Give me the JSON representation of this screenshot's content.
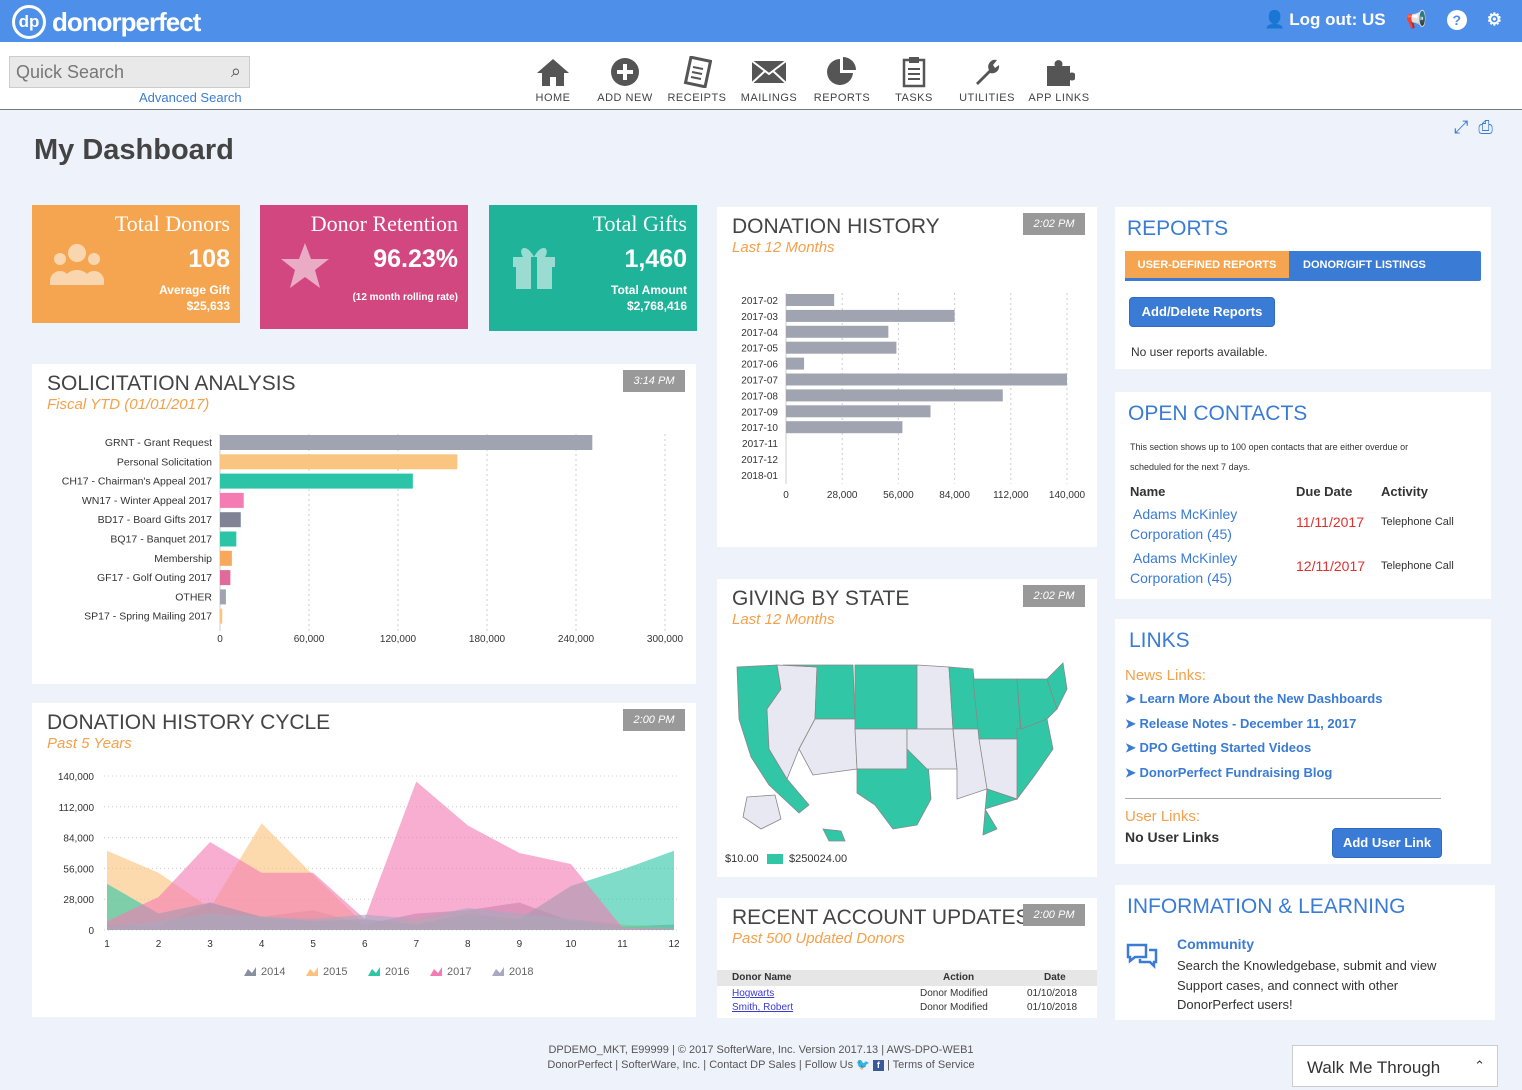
{
  "app": {
    "logo_badge": "dp",
    "logo_name": "donorperfect",
    "logout": "Log out: US"
  },
  "search": {
    "placeholder": "Quick Search",
    "advanced": "Advanced Search"
  },
  "nav": [
    {
      "label": "HOME",
      "icon": "home-icon"
    },
    {
      "label": "ADD NEW",
      "icon": "plus-circle-icon"
    },
    {
      "label": "RECEIPTS",
      "icon": "receipt-icon"
    },
    {
      "label": "MAILINGS",
      "icon": "envelope-icon"
    },
    {
      "label": "REPORTS",
      "icon": "pie-chart-icon"
    },
    {
      "label": "TASKS",
      "icon": "clipboard-icon"
    },
    {
      "label": "UTILITIES",
      "icon": "wrench-icon"
    },
    {
      "label": "APP LINKS",
      "icon": "puzzle-icon"
    }
  ],
  "page_title": "My Dashboard",
  "stats": {
    "donors": {
      "title": "Total Donors",
      "value": "108",
      "sub1": "Average Gift",
      "sub2": "$25,633",
      "color": "#f5a54f"
    },
    "retention": {
      "title": "Donor Retention",
      "value": "96.23%",
      "sub1": "(12 month rolling rate)",
      "color": "#d2477f"
    },
    "gifts": {
      "title": "Total Gifts",
      "value": "1,460",
      "sub1": "Total Amount",
      "sub2": "$2,768,416",
      "color": "#1fb39a"
    }
  },
  "solicitation": {
    "title": "SOLICITATION ANALYSIS",
    "subtitle": "Fiscal YTD (01/01/2017)",
    "time": "3:14 PM"
  },
  "history": {
    "title": "DONATION HISTORY",
    "subtitle": "Last 12 Months",
    "time": "2:02 PM"
  },
  "cycle": {
    "title": "DONATION HISTORY CYCLE",
    "subtitle": "Past 5 Years",
    "time": "2:00 PM"
  },
  "state": {
    "title": "GIVING BY STATE",
    "subtitle": "Last 12 Months",
    "time": "2:02 PM",
    "legend_min": "$10.00",
    "legend_max": "$250024.00"
  },
  "updates": {
    "title": "RECENT ACCOUNT UPDATES",
    "subtitle": "Past 500 Updated Donors",
    "time": "2:00 PM",
    "headers": [
      "Donor Name",
      "Action",
      "Date"
    ],
    "rows": [
      [
        "Hogwarts",
        "Donor Modified",
        "01/10/2018"
      ],
      [
        "Smith, Robert",
        "Donor Modified",
        "01/10/2018"
      ]
    ]
  },
  "reports": {
    "title": "REPORTS",
    "tab1": "USER-DEFINED REPORTS",
    "tab2": "DONOR/GIFT LISTINGS",
    "button": "Add/Delete Reports",
    "empty": "No user reports available."
  },
  "contacts": {
    "title": "OPEN CONTACTS",
    "desc1": "This section shows up to 100 open contacts that are either overdue or",
    "desc2": "scheduled for the next 7 days.",
    "headers": [
      "Name",
      "Due Date",
      "Activity"
    ],
    "rows": [
      {
        "name1": "Adams McKinley",
        "name2": "Corporation (45)",
        "date": "11/11/2017",
        "activity": "Telephone Call"
      },
      {
        "name1": "Adams McKinley",
        "name2": "Corporation (45)",
        "date": "12/11/2017",
        "activity": "Telephone Call"
      }
    ]
  },
  "links": {
    "title": "LINKS",
    "news_label": "News Links:",
    "news": [
      "Learn More About the New Dashboards",
      "Release Notes - December 11, 2017",
      "DPO Getting Started Videos",
      "DonorPerfect Fundraising Blog"
    ],
    "user_label": "User Links:",
    "no_user": "No User Links",
    "button": "Add User Link"
  },
  "info": {
    "title": "INFORMATION & LEARNING",
    "community": "Community",
    "desc1": "Search the Knowledgebase, submit and view",
    "desc2": "Support cases, and connect with other",
    "desc3": "DonorPerfect users!"
  },
  "footer": {
    "line1": "DPDEMO_MKT, E99999 | © 2017 SofterWare, Inc. Version 2017.13 | AWS-DPO-WEB1",
    "line2a": "DonorPerfect | SofterWare, Inc. | Contact DP Sales | Follow Us",
    "line2b": "| Terms of Service"
  },
  "walk": "Walk Me Through",
  "chart_data": [
    {
      "type": "bar",
      "orientation": "horizontal",
      "categories": [
        "GRNT - Grant Request",
        "Personal Solicitation",
        "CH17 - Chairman's Appeal 2017",
        "WN17 - Winter Appeal 2017",
        "BD17 - Board Gifts 2017",
        "BQ17 - Banquet 2017",
        "Membership",
        "GF17 - Golf Outing 2017",
        "OTHER",
        "SP17 - Spring Mailing 2017"
      ],
      "values": [
        251000,
        160000,
        130000,
        16000,
        14000,
        11000,
        8000,
        7000,
        4000,
        1500
      ],
      "colors": [
        "#9fa4b0",
        "#fac580",
        "#2cc4a6",
        "#f47cb3",
        "#7f8394",
        "#2cc4a6",
        "#f8a85a",
        "#e06b9b",
        "#9fa4b0",
        "#fac580"
      ],
      "xticks": [
        0,
        60000,
        120000,
        180000,
        240000,
        300000
      ],
      "xtick_labels": [
        "0",
        "60,000",
        "120,000",
        "180,000",
        "240,000",
        "300,000"
      ],
      "xlim": [
        0,
        300000
      ]
    },
    {
      "type": "bar",
      "orientation": "horizontal",
      "categories": [
        "2017-02",
        "2017-03",
        "2017-04",
        "2017-05",
        "2017-06",
        "2017-07",
        "2017-08",
        "2017-09",
        "2017-10",
        "2017-11",
        "2017-12",
        "2018-01"
      ],
      "values": [
        24000,
        84000,
        51000,
        55000,
        9000,
        140000,
        108000,
        72000,
        58000,
        0,
        0,
        0
      ],
      "color": "#9fa4b0",
      "xticks": [
        0,
        28000,
        56000,
        84000,
        112000,
        140000
      ],
      "xtick_labels": [
        "0",
        "28,000",
        "56,000",
        "84,000",
        "112,000",
        "140,000"
      ],
      "xlim": [
        0,
        140000
      ]
    },
    {
      "type": "area",
      "x": [
        1,
        2,
        3,
        4,
        5,
        6,
        7,
        8,
        9,
        10,
        11,
        12
      ],
      "yticks": [
        0,
        28000,
        56000,
        84000,
        112000,
        140000
      ],
      "ytick_labels": [
        "0",
        "28,000",
        "56,000",
        "84,000",
        "112,000",
        "140,000"
      ],
      "ylim": [
        0,
        140000
      ],
      "series": [
        {
          "name": "2014",
          "color": "#8a8fa0",
          "values": [
            5000,
            3000,
            25000,
            12000,
            18000,
            5000,
            15000,
            18000,
            25000,
            8000,
            3000,
            5000
          ]
        },
        {
          "name": "2015",
          "color": "#fbc27d",
          "values": [
            72000,
            52000,
            20000,
            97000,
            50000,
            5000,
            10000,
            15000,
            12000,
            10000,
            5000,
            2000
          ]
        },
        {
          "name": "2016",
          "color": "#31c7a6",
          "values": [
            42000,
            15000,
            25000,
            12000,
            8000,
            10000,
            5000,
            15000,
            10000,
            40000,
            55000,
            72000
          ]
        },
        {
          "name": "2017",
          "color": "#f47cb3",
          "values": [
            8000,
            30000,
            80000,
            52000,
            52000,
            10000,
            135000,
            95000,
            70000,
            60000,
            2000,
            1000
          ]
        },
        {
          "name": "2018",
          "color": "#a8a8c0",
          "values": [
            3000,
            8000,
            15000,
            12000,
            10000,
            14000,
            10000,
            20000,
            15000,
            10000,
            2000,
            1000
          ]
        }
      ]
    }
  ]
}
